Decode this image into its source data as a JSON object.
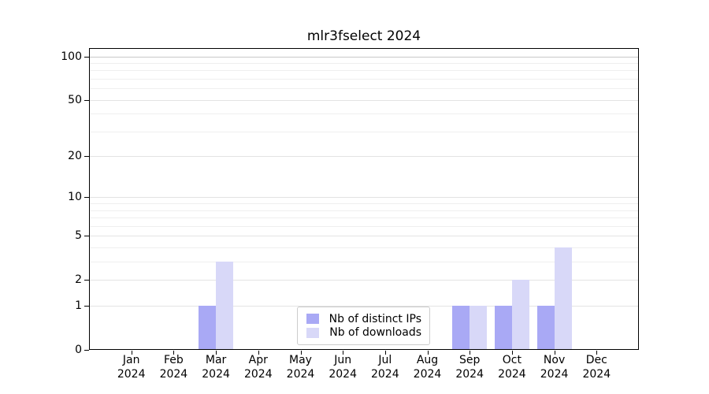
{
  "chart_data": {
    "type": "bar",
    "title": "mlr3fselect 2024",
    "categories": [
      "Jan 2024",
      "Feb 2024",
      "Mar 2024",
      "Apr 2024",
      "May 2024",
      "Jun 2024",
      "Jul 2024",
      "Aug 2024",
      "Sep 2024",
      "Oct 2024",
      "Nov 2024",
      "Dec 2024"
    ],
    "series": [
      {
        "name": "Nb of distinct IPs",
        "color": "#a9a9f5",
        "values": [
          0,
          0,
          1,
          0,
          0,
          0,
          0,
          0,
          1,
          1,
          1,
          0
        ]
      },
      {
        "name": "Nb of downloads",
        "color": "#d8d8f8",
        "values": [
          0,
          0,
          3,
          0,
          0,
          0,
          0,
          0,
          1,
          2,
          4,
          0
        ]
      }
    ],
    "yscale": "log1p",
    "ylim": [
      0,
      114
    ],
    "yticks": [
      0,
      1,
      2,
      5,
      10,
      20,
      50,
      100
    ],
    "minor_gridlines": [
      3,
      4,
      6,
      7,
      8,
      9,
      30,
      40,
      60,
      70,
      80,
      90
    ],
    "grid": "horizontal",
    "legend_position": "bottom-center",
    "colors": {
      "axis": "#000000",
      "grid_minor": "#efefef",
      "grid_major": "#e3e3e3",
      "grid_top": "#c8c8c8"
    }
  }
}
